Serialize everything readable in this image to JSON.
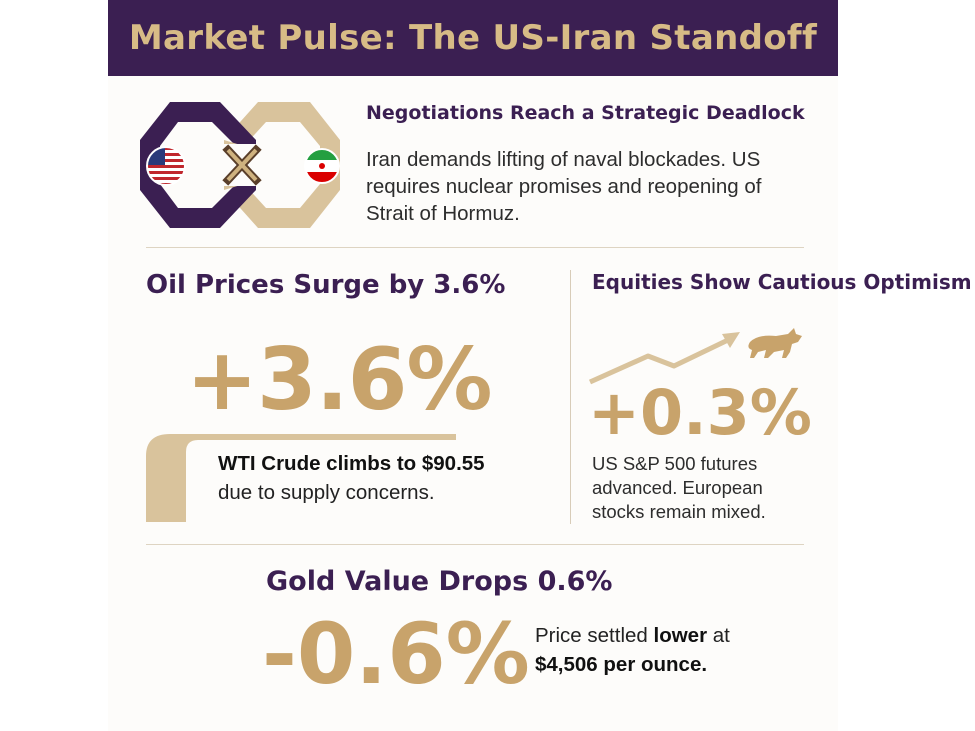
{
  "header": {
    "title": "Market Pulse: The US-Iran Standoff"
  },
  "negotiations": {
    "title": "Negotiations Reach a Strategic Deadlock",
    "body": "Iran demands lifting of naval blockades. US requires nuclear promises and reopening of Strait of Hormuz.",
    "icons": [
      "us-flag-icon",
      "iran-flag-icon",
      "x-mark-icon"
    ]
  },
  "oil": {
    "title": "Oil Prices Surge by 3.6%",
    "big_value": "+3.6%",
    "line1": "WTI Crude climbs to $90.55",
    "line2": "due to supply concerns."
  },
  "equities": {
    "title": "Equities Show Cautious Optimism",
    "big_value": "+0.3%",
    "body": "US S&P 500 futures advanced. European stocks remain mixed.",
    "icons": [
      "trend-arrow-icon",
      "bull-icon"
    ]
  },
  "gold": {
    "title": "Gold Value Drops 0.6%",
    "big_value": "-0.6%",
    "body_pre": "Price settled ",
    "body_bold1": "lower",
    "body_mid": " at",
    "body_bold2": "$4,506 per ounce."
  },
  "colors": {
    "purple": "#3b1f52",
    "gold": "#c8a36b",
    "light_gold": "#d7bb86"
  }
}
